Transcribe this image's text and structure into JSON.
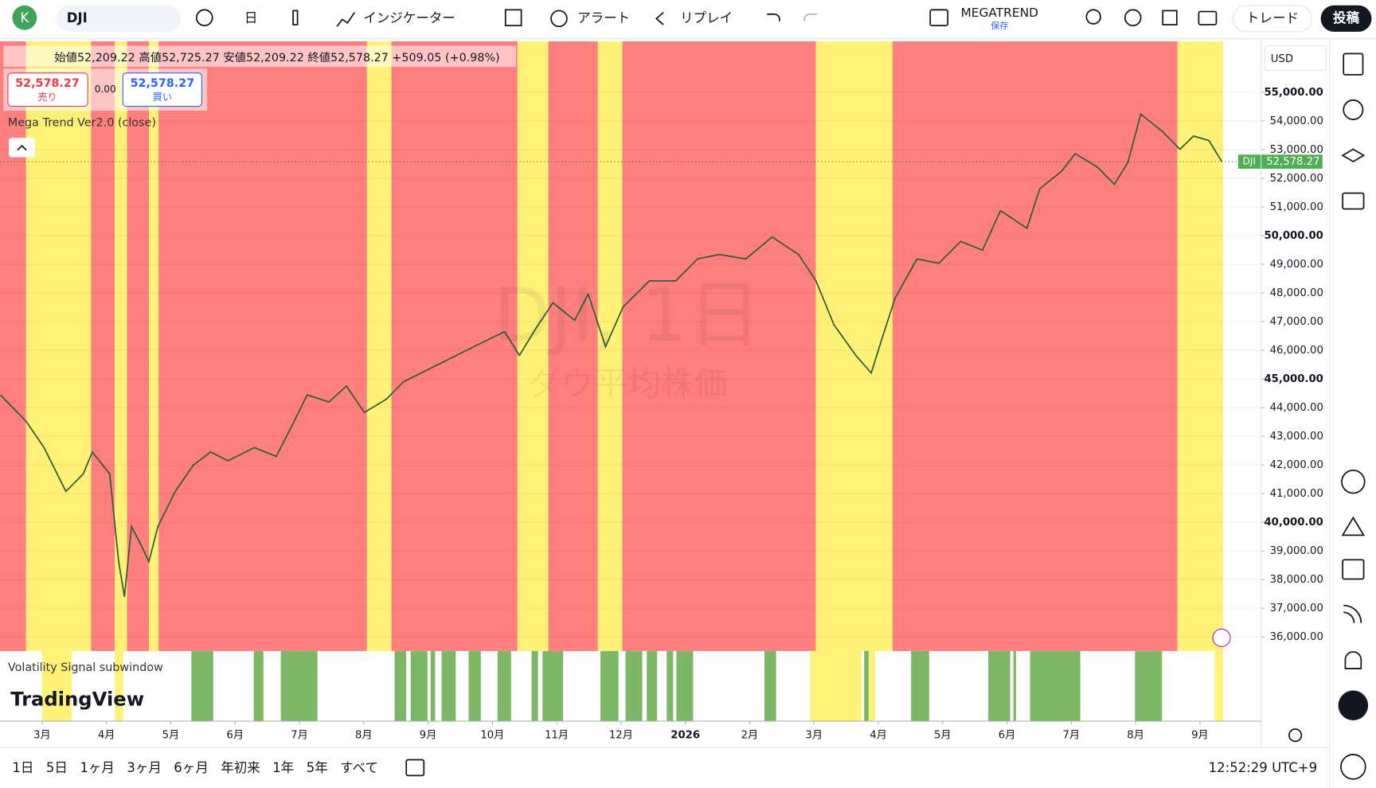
{
  "toolbar": {
    "avatar": "K",
    "symbol": "DJI",
    "interval": "日",
    "indicators": "インジケーター",
    "alerts": "アラート",
    "replay": "リプレイ",
    "layout_name": "MEGATREND",
    "layout_status": "保存",
    "trade": "トレード",
    "publish": "投稿"
  },
  "legend": {
    "ohlc": "始値52,209.22 高値52,725.27 安値52,209.22 終値52,578.27 +509.05 (+0.98%)",
    "sell_price": "52,578.27",
    "sell": "売り",
    "spread": "0.00",
    "buy_price": "52,578.27",
    "buy": "買い",
    "indicator": "Mega Trend Ver2.0 (close)"
  },
  "watermark": {
    "symbol": "DJI, 1日",
    "name": "ダウ平均株価"
  },
  "currency": "USD",
  "last_price_tag": {
    "symbol": "DJI",
    "price": "52,578.27"
  },
  "subwindow": {
    "title": "Volatility Signal subwindow",
    "bands": [
      {
        "from": 2.32,
        "to": 2.66,
        "color": "#7cb765"
      },
      {
        "from": 3.29,
        "to": 3.44,
        "color": "#7cb765"
      },
      {
        "from": 3.71,
        "to": 4.28,
        "color": "#7cb765"
      },
      {
        "from": 5.48,
        "to": 5.66,
        "color": "#7cb765"
      },
      {
        "from": 5.73,
        "to": 5.99,
        "color": "#7cb765"
      },
      {
        "from": 6.04,
        "to": 6.11,
        "color": "#7cb765"
      },
      {
        "from": 6.21,
        "to": 6.43,
        "color": "#7cb765"
      },
      {
        "from": 6.63,
        "to": 6.82,
        "color": "#7cb765"
      },
      {
        "from": 7.08,
        "to": 7.29,
        "color": "#7cb765"
      },
      {
        "from": 7.61,
        "to": 7.71,
        "color": "#7cb765"
      },
      {
        "from": 7.78,
        "to": 8.1,
        "color": "#7cb765"
      },
      {
        "from": 8.68,
        "to": 8.96,
        "color": "#7cb765"
      },
      {
        "from": 9.07,
        "to": 9.33,
        "color": "#7cb765"
      },
      {
        "from": 9.4,
        "to": 9.56,
        "color": "#7cb765"
      },
      {
        "from": 9.71,
        "to": 9.81,
        "color": "#7cb765"
      },
      {
        "from": 9.86,
        "to": 10.12,
        "color": "#7cb765"
      },
      {
        "from": 11.23,
        "to": 11.41,
        "color": "#7cb765"
      },
      {
        "from": 12.78,
        "to": 12.88,
        "color": "#7cb765"
      },
      {
        "from": 13.51,
        "to": 13.79,
        "color": "#7cb765"
      },
      {
        "from": 14.71,
        "to": 15.05,
        "color": "#7cb765"
      },
      {
        "from": 15.1,
        "to": 15.14,
        "color": "#7cb765"
      },
      {
        "from": 15.36,
        "to": 16.14,
        "color": "#7cb765"
      },
      {
        "from": 16.99,
        "to": 17.41,
        "color": "#7cb765"
      },
      {
        "from": 0,
        "to": 0.46,
        "color": "#fff176"
      },
      {
        "from": 1.13,
        "to": 1.26,
        "color": "#fff176"
      },
      {
        "from": 11.94,
        "to": 12.74,
        "color": "#fff176"
      },
      {
        "from": 12.85,
        "to": 12.95,
        "color": "#fff176"
      },
      {
        "from": 18.23,
        "to": 18.36,
        "color": "#fff176"
      }
    ]
  },
  "brand": "TradingView",
  "ranges": [
    "1日",
    "5日",
    "1ヶ月",
    "3ヶ月",
    "6ヶ月",
    "年初来",
    "1年",
    "5年",
    "すべて"
  ],
  "clock": "12:52:29 UTC+9",
  "chart_data": {
    "type": "line",
    "color": "#2e5e3a",
    "grid": true,
    "xlim": [
      -0.655,
      18.95
    ],
    "xticks": [
      {
        "value": 0,
        "label": "3月"
      },
      {
        "value": 1,
        "label": "4月"
      },
      {
        "value": 2,
        "label": "5月"
      },
      {
        "value": 3,
        "label": "6月"
      },
      {
        "value": 4,
        "label": "7月"
      },
      {
        "value": 5,
        "label": "8月"
      },
      {
        "value": 6,
        "label": "9月"
      },
      {
        "value": 7,
        "label": "10月"
      },
      {
        "value": 8,
        "label": "11月"
      },
      {
        "value": 9,
        "label": "12月"
      },
      {
        "value": 10,
        "label": "2026"
      },
      {
        "value": 11,
        "label": "2月"
      },
      {
        "value": 12,
        "label": "3月"
      },
      {
        "value": 13,
        "label": "4月"
      },
      {
        "value": 14,
        "label": "5月"
      },
      {
        "value": 15,
        "label": "6月"
      },
      {
        "value": 16,
        "label": "7月"
      },
      {
        "value": 17,
        "label": "8月"
      },
      {
        "value": 18,
        "label": "9月"
      }
    ],
    "ylim": [
      35510,
      56775
    ],
    "yticks": [
      {
        "value": 36000,
        "label": "36,000.00"
      },
      {
        "value": 37000,
        "label": "37,000.00"
      },
      {
        "value": 38000,
        "label": "38,000.00"
      },
      {
        "value": 39000,
        "label": "39,000.00"
      },
      {
        "value": 40000,
        "label": "40,000.00"
      },
      {
        "value": 41000,
        "label": "41,000.00"
      },
      {
        "value": 42000,
        "label": "42,000.00"
      },
      {
        "value": 43000,
        "label": "43,000.00"
      },
      {
        "value": 44000,
        "label": "44,000.00"
      },
      {
        "value": 45000,
        "label": "45,000.00"
      },
      {
        "value": 46000,
        "label": "46,000.00"
      },
      {
        "value": 47000,
        "label": "47,000.00"
      },
      {
        "value": 48000,
        "label": "48,000.00"
      },
      {
        "value": 49000,
        "label": "49,000.00"
      },
      {
        "value": 50000,
        "label": "50,000.00"
      },
      {
        "value": 51000,
        "label": "51,000.00"
      },
      {
        "value": 52000,
        "label": "52,000.00"
      },
      {
        "value": 53000,
        "label": "53,000.00"
      },
      {
        "value": 54000,
        "label": "54,000.00"
      },
      {
        "value": 55000,
        "label": "55,000.00"
      }
    ],
    "bands": [
      {
        "from": -0.655,
        "to": -0.25,
        "color": "#ff7f7f"
      },
      {
        "from": -0.25,
        "to": 0.76,
        "color": "#fff176"
      },
      {
        "from": 0.76,
        "to": 1.13,
        "color": "#ff7f7f"
      },
      {
        "from": 1.13,
        "to": 1.32,
        "color": "#fff176"
      },
      {
        "from": 1.32,
        "to": 1.66,
        "color": "#ff7f7f"
      },
      {
        "from": 1.66,
        "to": 1.81,
        "color": "#fff176"
      },
      {
        "from": 1.81,
        "to": 5.05,
        "color": "#ff7f7f"
      },
      {
        "from": 5.05,
        "to": 5.43,
        "color": "#fff176"
      },
      {
        "from": 5.43,
        "to": 7.39,
        "color": "#ff7f7f"
      },
      {
        "from": 7.39,
        "to": 7.87,
        "color": "#fff176"
      },
      {
        "from": 7.87,
        "to": 8.64,
        "color": "#ff7f7f"
      },
      {
        "from": 8.64,
        "to": 9.02,
        "color": "#fff176"
      },
      {
        "from": 9.02,
        "to": 12.03,
        "color": "#ff7f7f"
      },
      {
        "from": 12.03,
        "to": 13.22,
        "color": "#fff176"
      },
      {
        "from": 13.22,
        "to": 17.65,
        "color": "#ff7f7f"
      },
      {
        "from": 17.65,
        "to": 18.36,
        "color": "#fff176"
      }
    ],
    "x": [
      -0.65,
      -0.25,
      0.03,
      0.37,
      0.64,
      0.78,
      1.05,
      1.19,
      1.28,
      1.39,
      1.53,
      1.66,
      1.8,
      2.07,
      2.35,
      2.62,
      2.89,
      3.3,
      3.64,
      3.92,
      4.12,
      4.46,
      4.73,
      5.01,
      5.35,
      5.62,
      6.03,
      6.44,
      6.85,
      7.19,
      7.42,
      7.67,
      7.94,
      8.28,
      8.49,
      8.76,
      9.03,
      9.44,
      9.85,
      10.19,
      10.53,
      10.94,
      11.35,
      11.76,
      12.03,
      12.31,
      12.65,
      12.89,
      13.06,
      13.26,
      13.6,
      13.94,
      14.28,
      14.62,
      14.9,
      15.31,
      15.51,
      15.85,
      16.06,
      16.4,
      16.67,
      16.88,
      17.08,
      17.42,
      17.69,
      17.9,
      18.14,
      18.34
    ],
    "values": [
      44443,
      43525,
      42607,
      41077,
      41689,
      42454,
      41689,
      38629,
      37405,
      39853,
      39241,
      38629,
      39853,
      41077,
      41995,
      42454,
      42148,
      42607,
      42301,
      43525,
      44443,
      44198,
      44749,
      43831,
      44290,
      44902,
      45361,
      45820,
      46279,
      46646,
      45820,
      46738,
      47656,
      47044,
      47962,
      46126,
      47503,
      48421,
      48421,
      49186,
      49339,
      49186,
      49951,
      49339,
      48421,
      46891,
      45820,
      45208,
      46432,
      47809,
      49186,
      49033,
      49798,
      49492,
      50869,
      50257,
      51634,
      52246,
      52858,
      52399,
      51787,
      52552,
      54235,
      53623,
      53011,
      53470,
      53317,
      52578.27
    ]
  }
}
